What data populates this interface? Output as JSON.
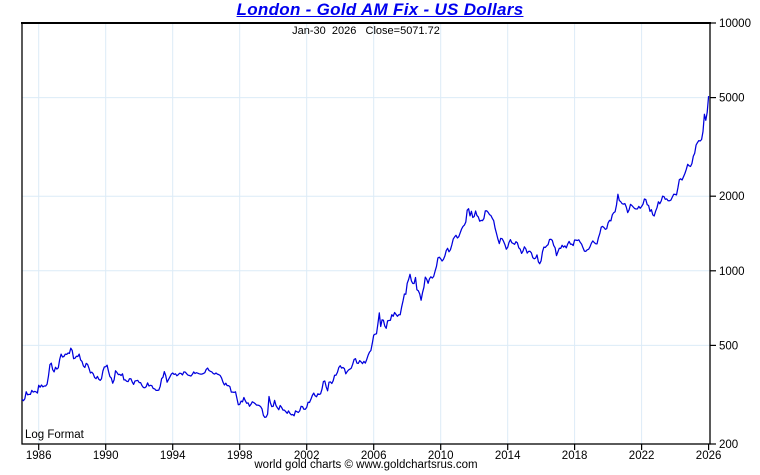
{
  "header": {
    "title": "London - Gold AM Fix - US Dollars",
    "subtitle": "Jan-30  2026   Close=5071.72"
  },
  "plot": {
    "scale_label": "Log Format"
  },
  "footer": {
    "credit": "world gold charts © www.goldchartsrus.com"
  },
  "colors": {
    "title": "#0000ee",
    "line": "#0000dd",
    "grid": "#dcebf7",
    "axis": "#000000",
    "background": "#ffffff"
  },
  "chart_data": {
    "type": "line",
    "title": "London - Gold AM Fix - US Dollars",
    "subtitle_date": "Jan-30 2026",
    "subtitle_close_label": "Close=5071.72",
    "close_value": 5071.72,
    "y_scale": "log",
    "ylim": [
      200,
      10000
    ],
    "xlim": [
      1985.0,
      2026.083
    ],
    "y_ticks": [
      200,
      500,
      1000,
      2000,
      5000,
      10000
    ],
    "x_ticks": [
      1986,
      1990,
      1994,
      1998,
      2002,
      2006,
      2010,
      2014,
      2018,
      2022,
      2026
    ],
    "grid": true,
    "legend": "none",
    "series": [
      {
        "name": "Gold AM Fix (USD)",
        "start_year": 1985,
        "interval": "monthly",
        "values": [
          303,
          299,
          304,
          325,
          316,
          317,
          317,
          329,
          324,
          326,
          325,
          321,
          345,
          339,
          346,
          340,
          343,
          343,
          349,
          377,
          418,
          424,
          399,
          391,
          408,
          401,
          406,
          439,
          461,
          449,
          451,
          461,
          460,
          466,
          464,
          487,
          477,
          442,
          444,
          452,
          451,
          461,
          437,
          431,
          413,
          407,
          423,
          419,
          404,
          387,
          390,
          384,
          371,
          367,
          375,
          365,
          361,
          367,
          394,
          409,
          410,
          416,
          393,
          374,
          369,
          352,
          363,
          395,
          389,
          381,
          382,
          378,
          384,
          363,
          363,
          358,
          357,
          367,
          367,
          356,
          348,
          359,
          360,
          361,
          354,
          354,
          344,
          338,
          337,
          341,
          353,
          343,
          345,
          344,
          335,
          334,
          329,
          329,
          330,
          342,
          367,
          372,
          392,
          378,
          355,
          364,
          373,
          383,
          387,
          382,
          384,
          377,
          381,
          386,
          385,
          380,
          391,
          390,
          384,
          379,
          378,
          376,
          382,
          391,
          385,
          388,
          386,
          384,
          383,
          383,
          385,
          388,
          400,
          405,
          396,
          393,
          391,
          385,
          383,
          387,
          383,
          381,
          378,
          369,
          355,
          346,
          352,
          344,
          344,
          341,
          324,
          324,
          323,
          325,
          306,
          288,
          289,
          298,
          296,
          308,
          299,
          292,
          293,
          284,
          289,
          296,
          294,
          291,
          287,
          287,
          286,
          283,
          277,
          261,
          256,
          257,
          264,
          311,
          293,
          283,
          284,
          300,
          286,
          280,
          275,
          286,
          281,
          274,
          274,
          270,
          266,
          272,
          266,
          262,
          263,
          260,
          272,
          270,
          268,
          272,
          284,
          283,
          276,
          276,
          281,
          295,
          294,
          303,
          314,
          321,
          313,
          310,
          319,
          317,
          319,
          333,
          357,
          359,
          340,
          328,
          355,
          356,
          351,
          360,
          379,
          379,
          389,
          407,
          414,
          405,
          407,
          403,
          384,
          392,
          398,
          401,
          405,
          420,
          439,
          442,
          424,
          423,
          434,
          429,
          422,
          431,
          424,
          438,
          456,
          470,
          477,
          510,
          550,
          555,
          557,
          611,
          676,
          596,
          634,
          632,
          598,
          586,
          628,
          630,
          631,
          665,
          655,
          679,
          667,
          655,
          665,
          665,
          713,
          755,
          806,
          804,
          890,
          922,
          968,
          910,
          889,
          889,
          940,
          839,
          830,
          807,
          761,
          816,
          858,
          943,
          924,
          890,
          929,
          946,
          934,
          949,
          997,
          1043,
          1127,
          1135,
          1118,
          1095,
          1113,
          1149,
          1205,
          1232,
          1193,
          1216,
          1271,
          1342,
          1370,
          1391,
          1356,
          1373,
          1424,
          1474,
          1511,
          1529,
          1573,
          1756,
          1780,
          1666,
          1739,
          1641,
          1656,
          1743,
          1674,
          1650,
          1586,
          1597,
          1594,
          1626,
          1744,
          1747,
          1722,
          1685,
          1671,
          1628,
          1593,
          1485,
          1414,
          1343,
          1287,
          1351,
          1348,
          1316,
          1276,
          1222,
          1244,
          1301,
          1336,
          1298,
          1289,
          1279,
          1311,
          1296,
          1238,
          1222,
          1176,
          1201,
          1250,
          1227,
          1179,
          1198,
          1199,
          1181,
          1130,
          1118,
          1125,
          1159,
          1086,
          1068,
          1097,
          1194,
          1246,
          1242,
          1261,
          1276,
          1337,
          1340,
          1327,
          1266,
          1238,
          1152,
          1192,
          1234,
          1231,
          1267,
          1246,
          1260,
          1237,
          1283,
          1314,
          1280,
          1282,
          1264,
          1331,
          1330,
          1325,
          1334,
          1303,
          1281,
          1238,
          1201,
          1198,
          1215,
          1221,
          1250,
          1292,
          1320,
          1301,
          1286,
          1284,
          1359,
          1413,
          1500,
          1511,
          1495,
          1471,
          1479,
          1561,
          1597,
          1592,
          1683,
          1716,
          1732,
          1843,
          2035,
          1922,
          1900,
          1866,
          1858,
          1867,
          1808,
          1718,
          1762,
          1853,
          1835,
          1807,
          1784,
          1776,
          1777,
          1820,
          1787,
          1817,
          1856,
          1948,
          1937,
          1848,
          1834,
          1736,
          1765,
          1681,
          1664,
          1740,
          1797,
          1898,
          1866,
          1913,
          2000,
          1992,
          1943,
          1951,
          1919,
          1916,
          1928,
          1984,
          2036,
          2034,
          2025,
          2160,
          2330,
          2351,
          2326,
          2398,
          2470,
          2568,
          2690,
          2652,
          2636,
          2708,
          2897,
          2983,
          3218,
          3288,
          3353,
          3340,
          3388,
          3650,
          4280,
          4050,
          4360,
          5071.72
        ]
      }
    ]
  }
}
